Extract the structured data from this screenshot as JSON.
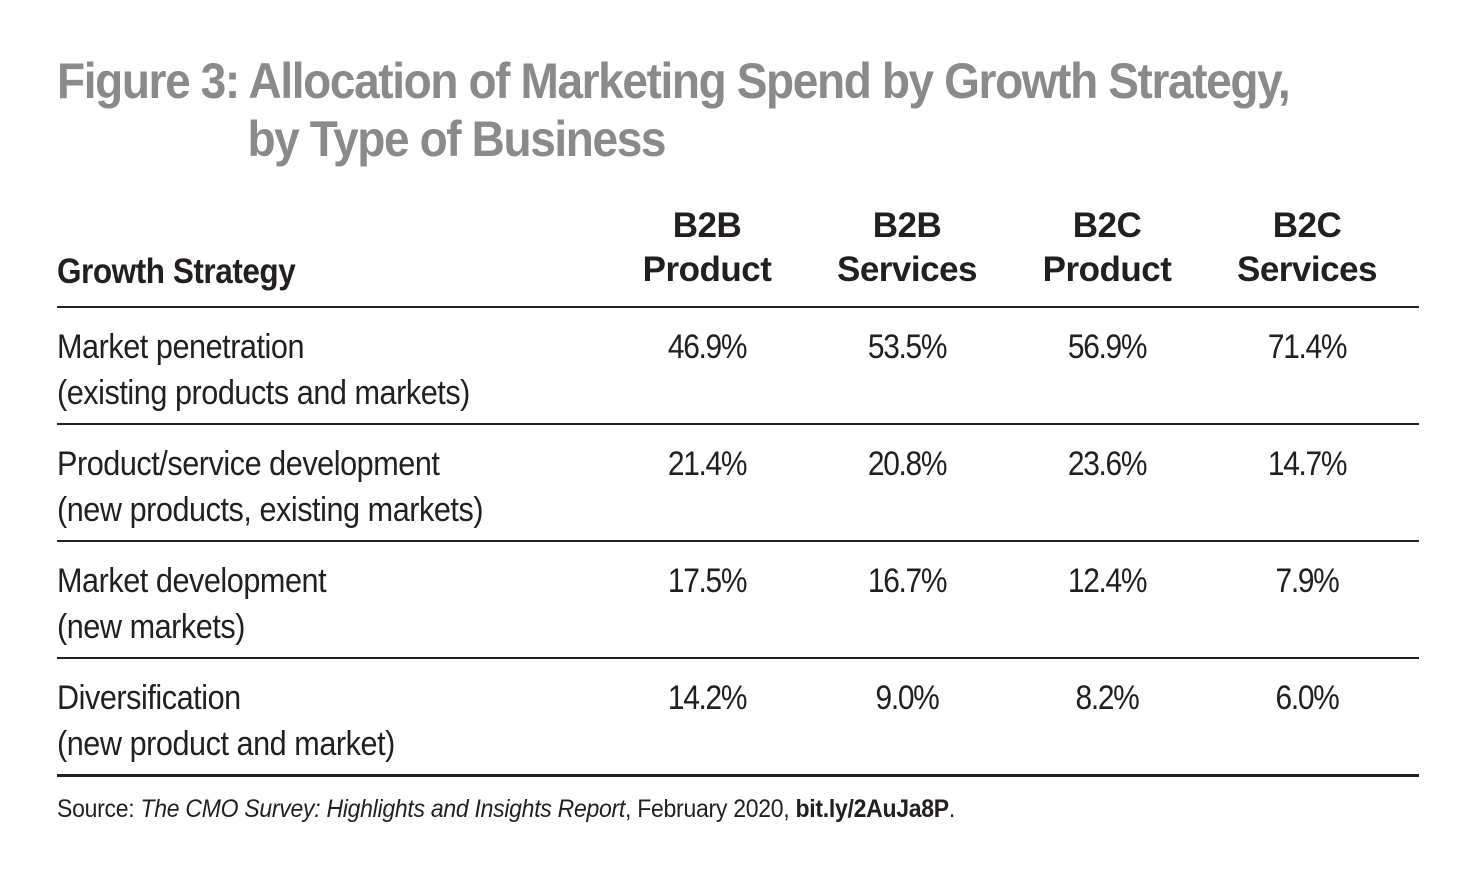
{
  "title": {
    "line1": "Figure 3: Allocation of Marketing Spend by Growth Strategy,",
    "line2": "by Type of Business"
  },
  "table": {
    "first_header": "Growth Strategy",
    "columns": [
      {
        "line1": "B2B",
        "line2": "Product"
      },
      {
        "line1": "B2B",
        "line2": "Services"
      },
      {
        "line1": "B2C",
        "line2": "Product"
      },
      {
        "line1": "B2C",
        "line2": "Services"
      }
    ],
    "rows": [
      {
        "label": "Market penetration",
        "sublabel": "(existing products and markets)",
        "values": [
          "46.9%",
          "53.5%",
          "56.9%",
          "71.4%"
        ]
      },
      {
        "label": "Product/service development",
        "sublabel": "(new products, existing markets)",
        "values": [
          "21.4%",
          "20.8%",
          "23.6%",
          "14.7%"
        ]
      },
      {
        "label": "Market development",
        "sublabel": "(new markets)",
        "values": [
          "17.5%",
          "16.7%",
          "12.4%",
          "7.9%"
        ]
      },
      {
        "label": "Diversification",
        "sublabel": "(new product and market)",
        "values": [
          "14.2%",
          "9.0%",
          "8.2%",
          "6.0%"
        ]
      }
    ]
  },
  "source": {
    "prefix": "Source: ",
    "italic": "The CMO Survey: Highlights and Insights Report",
    "middle": ", February 2020, ",
    "link": "bit.ly/2AuJa8P",
    "suffix": "."
  }
}
